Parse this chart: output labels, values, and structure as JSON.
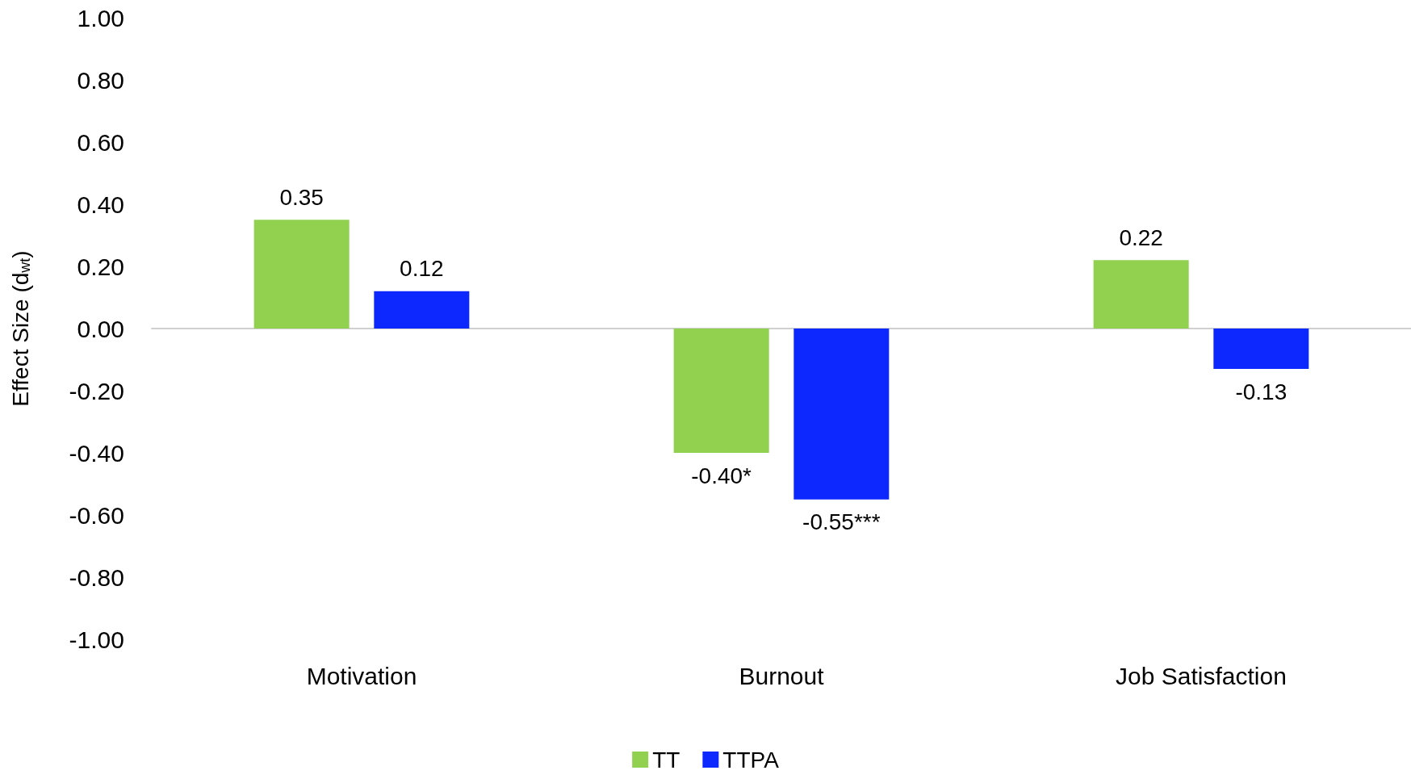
{
  "chart_data": {
    "type": "bar",
    "ylabel": "Effect Size (d$_{wt}$)",
    "categories": [
      "Motivation",
      "Burnout",
      "Job Satisfaction"
    ],
    "series": [
      {
        "name": "TT",
        "color": "#92d050",
        "values": [
          0.35,
          -0.4,
          0.22
        ],
        "value_labels": [
          "0.35",
          "-0.40*",
          "0.22"
        ]
      },
      {
        "name": "TTPA",
        "color": "#0d27ff",
        "values": [
          0.12,
          -0.55,
          -0.13
        ],
        "value_labels": [
          "0.12",
          "-0.55***",
          "-0.13"
        ]
      }
    ],
    "ylim": [
      -1,
      1
    ],
    "yticks": [
      {
        "value": -1,
        "label": "-1.00"
      },
      {
        "value": -0.8,
        "label": "-0.80"
      },
      {
        "value": -0.6,
        "label": "-0.60"
      },
      {
        "value": -0.4,
        "label": "-0.40"
      },
      {
        "value": -0.2,
        "label": "-0.20"
      },
      {
        "value": 0,
        "label": "0.00"
      },
      {
        "value": 0.2,
        "label": "0.20"
      },
      {
        "value": 0.4,
        "label": "0.40"
      },
      {
        "value": 0.6,
        "label": "0.60"
      },
      {
        "value": 0.8,
        "label": "0.80"
      },
      {
        "value": 1,
        "label": "1.00"
      }
    ],
    "legend": "bottom"
  }
}
